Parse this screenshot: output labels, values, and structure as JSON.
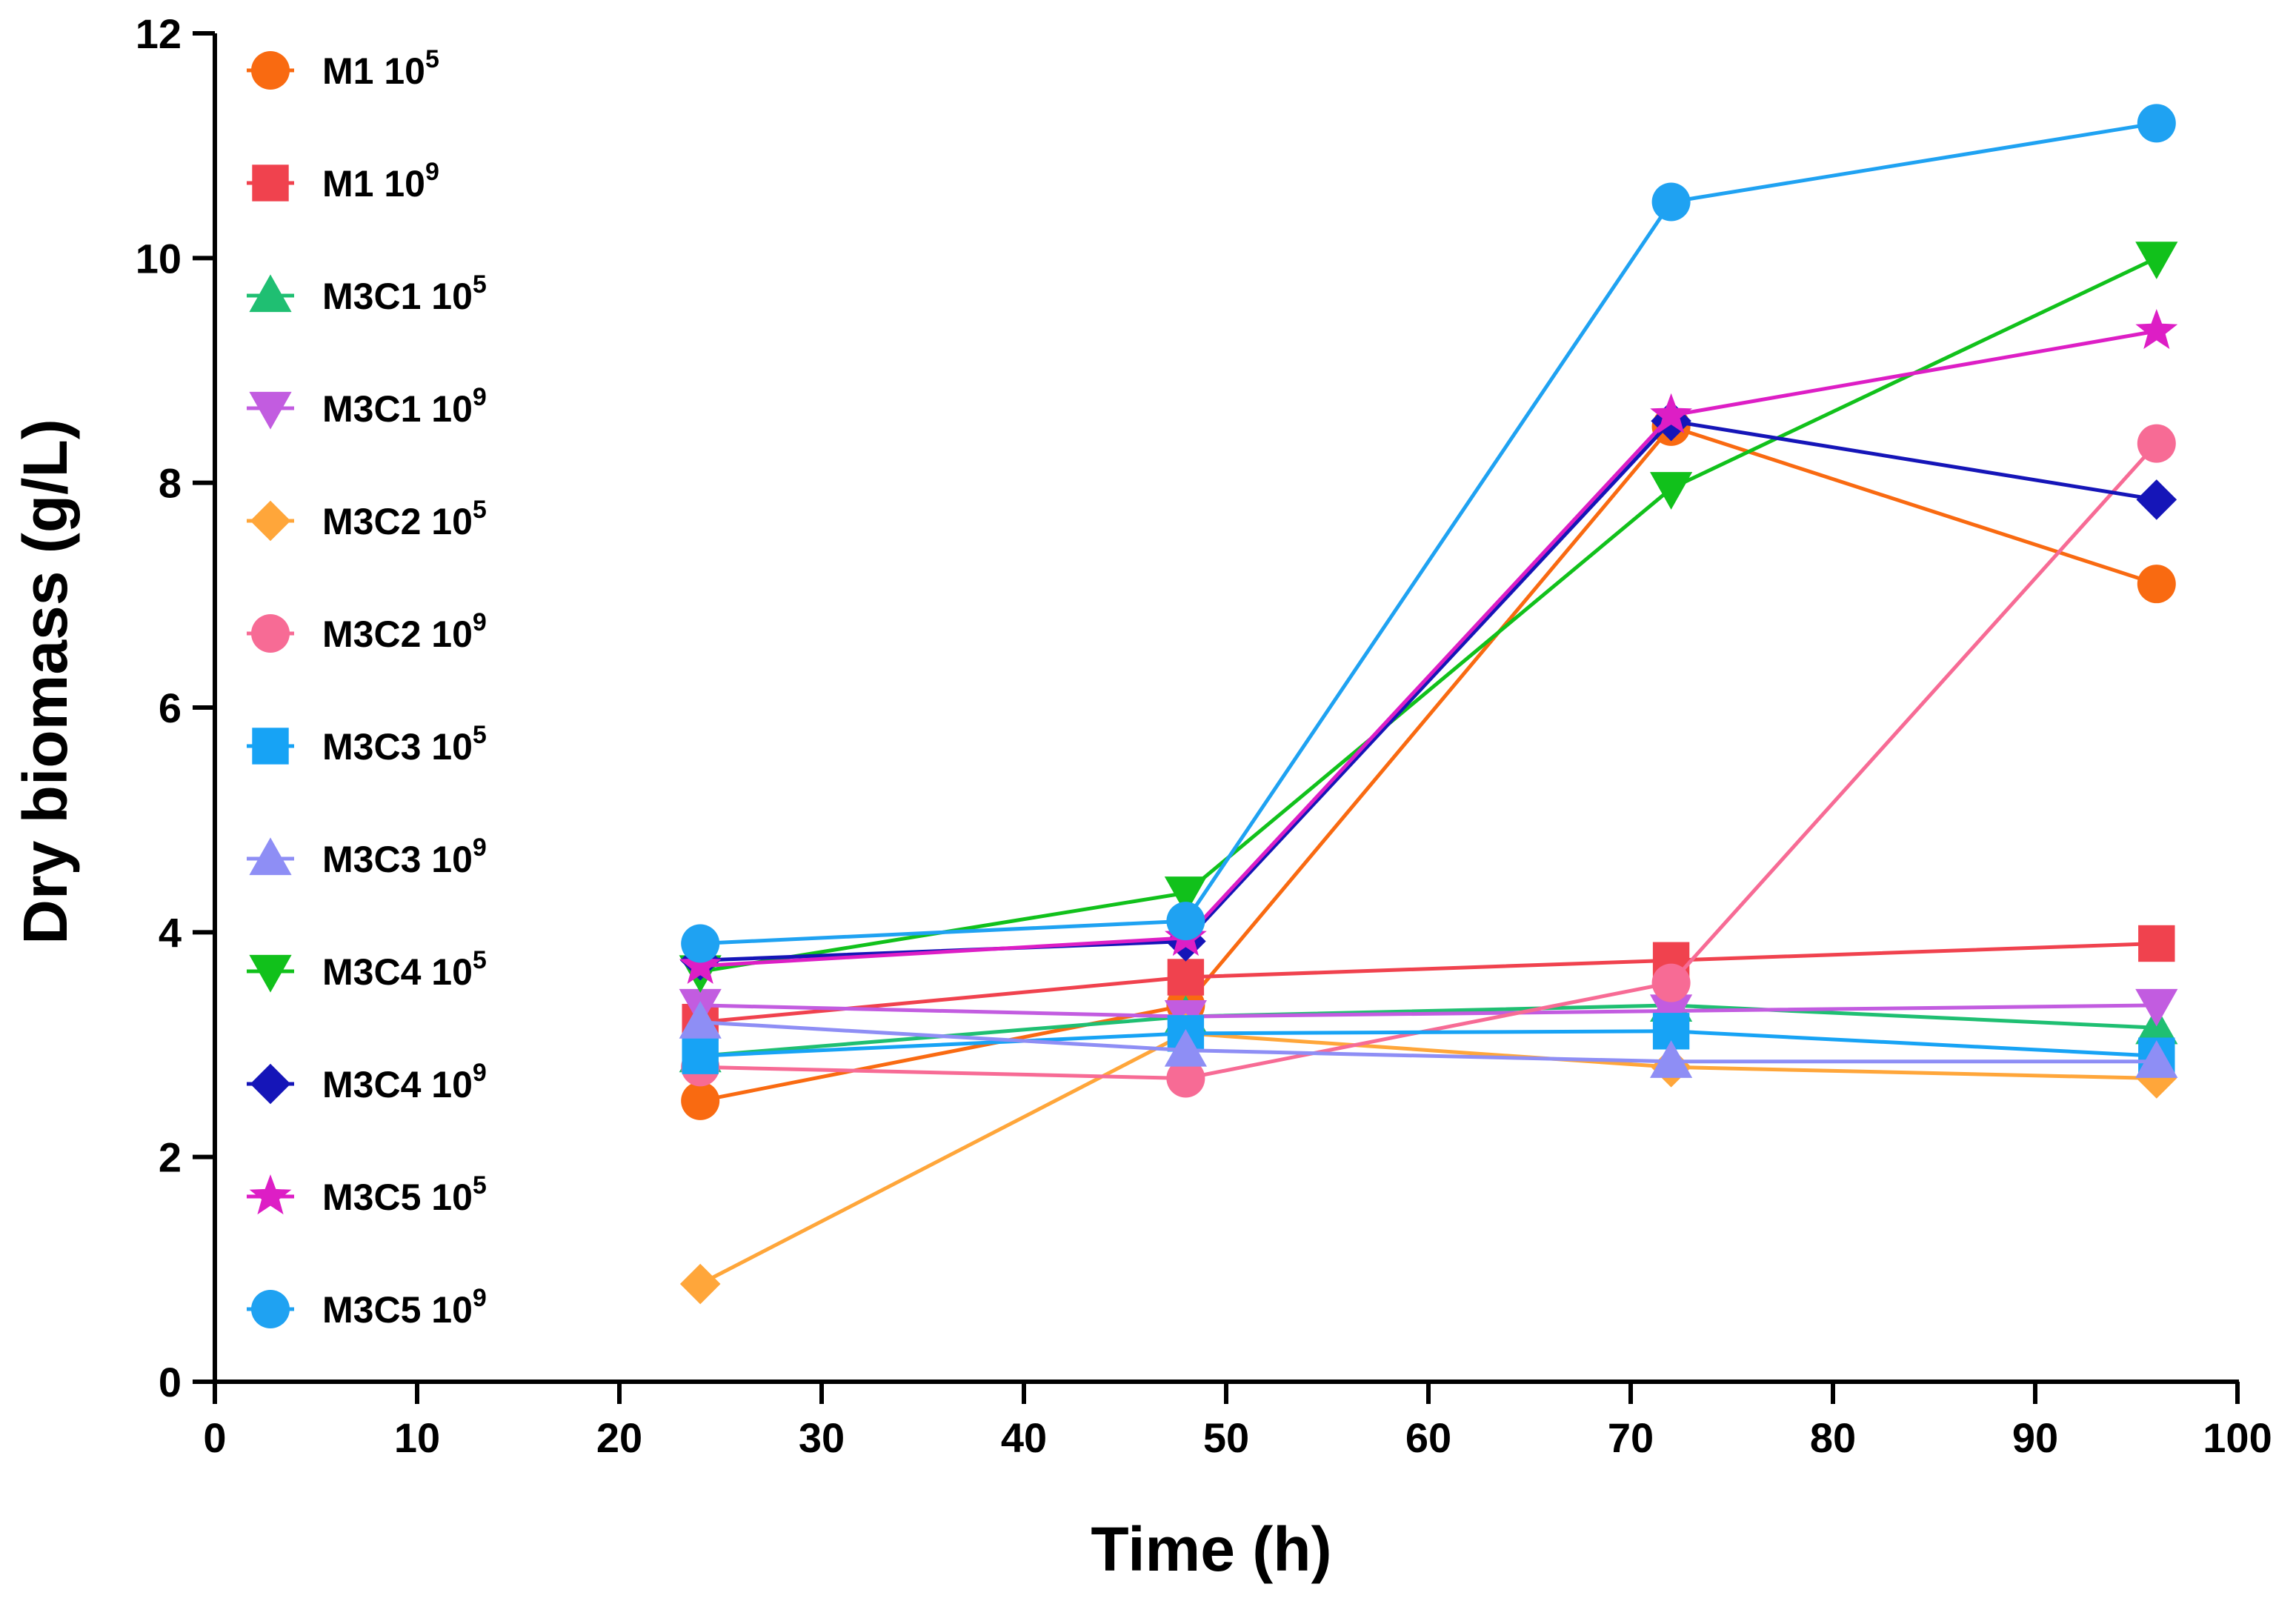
{
  "chart_data": {
    "type": "line",
    "xlabel": "Time (h)",
    "ylabel": "Dry biomass (g/L)",
    "xlim": [
      0,
      100
    ],
    "ylim": [
      0,
      12
    ],
    "x_ticks": [
      0,
      10,
      20,
      30,
      40,
      50,
      60,
      70,
      80,
      90,
      100
    ],
    "y_ticks": [
      0,
      2,
      4,
      6,
      8,
      10,
      12
    ],
    "grid": false,
    "legend_position": "top-left",
    "x": [
      24,
      48,
      72,
      96
    ],
    "series": [
      {
        "name": "M1 10",
        "sup": "5",
        "color": "#F96A11",
        "marker": "circle",
        "values": [
          2.5,
          3.35,
          8.5,
          7.1
        ]
      },
      {
        "name": "M1 10",
        "sup": "9",
        "color": "#F0424E",
        "marker": "square",
        "values": [
          3.2,
          3.6,
          3.75,
          3.9
        ]
      },
      {
        "name": "M3C1 10",
        "sup": "5",
        "color": "#1FBF72",
        "marker": "triangle-up",
        "values": [
          2.9,
          3.25,
          3.35,
          3.15
        ]
      },
      {
        "name": "M3C1 10",
        "sup": "9",
        "color": "#C25CE0",
        "marker": "triangle-down",
        "values": [
          3.35,
          3.25,
          3.3,
          3.35
        ]
      },
      {
        "name": "M3C2 10",
        "sup": "5",
        "color": "#FFA63A",
        "marker": "diamond",
        "values": [
          0.87,
          3.1,
          2.8,
          2.7
        ]
      },
      {
        "name": "M3C2 10",
        "sup": "9",
        "color": "#F76B95",
        "marker": "circle",
        "values": [
          2.8,
          2.7,
          3.55,
          8.35
        ]
      },
      {
        "name": "M3C3 10",
        "sup": "5",
        "color": "#17A3F5",
        "marker": "square",
        "values": [
          2.9,
          3.1,
          3.12,
          2.9
        ]
      },
      {
        "name": "M3C3 10",
        "sup": "9",
        "color": "#8E8EF5",
        "marker": "triangle-up",
        "values": [
          3.2,
          2.95,
          2.85,
          2.85
        ]
      },
      {
        "name": "M3C4 10",
        "sup": "5",
        "color": "#11C11B",
        "marker": "triangle-down",
        "values": [
          3.65,
          4.35,
          7.95,
          10.0
        ]
      },
      {
        "name": "M3C4 10",
        "sup": "9",
        "color": "#1515B8",
        "marker": "diamond",
        "values": [
          3.75,
          3.92,
          8.55,
          7.85
        ]
      },
      {
        "name": "M3C5 10",
        "sup": "5",
        "color": "#DD1EC5",
        "marker": "star",
        "values": [
          3.7,
          3.95,
          8.6,
          9.35
        ]
      },
      {
        "name": "M3C5 10",
        "sup": "9",
        "color": "#1FA2F2",
        "marker": "circle",
        "values": [
          3.9,
          4.1,
          10.5,
          11.2
        ]
      }
    ]
  }
}
